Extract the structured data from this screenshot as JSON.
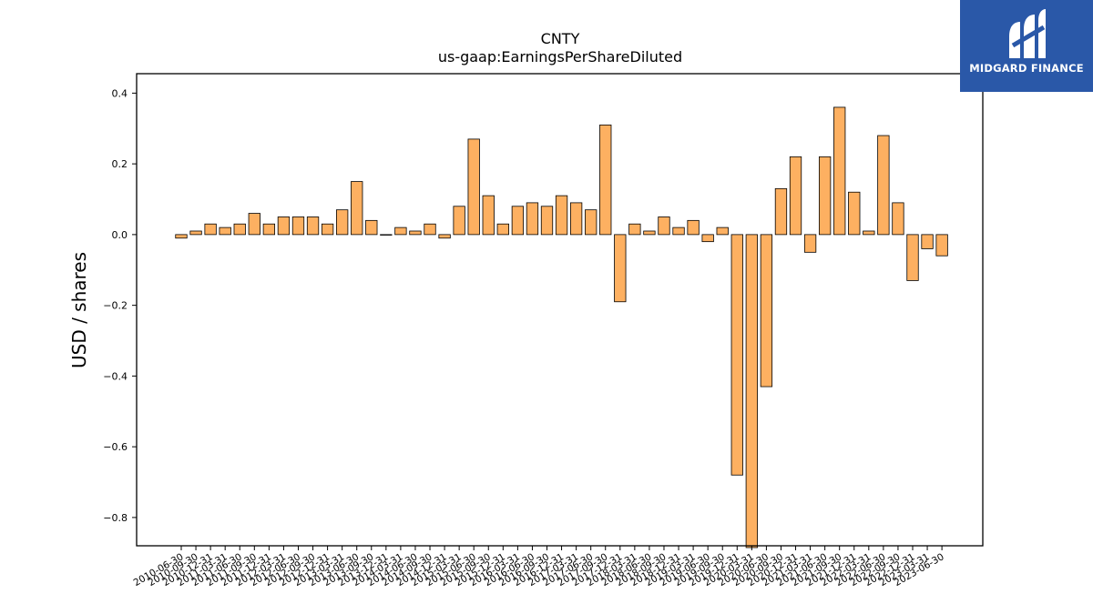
{
  "chart_data": {
    "type": "bar",
    "title": "CNTY",
    "subtitle": "us-gaap:EarningsPerShareDiluted",
    "ylabel": "USD / shares",
    "xlabel": "",
    "ylim": [
      -0.88,
      0.455
    ],
    "yticks": [
      0.4,
      0.2,
      0.0,
      -0.2,
      -0.4,
      -0.6,
      -0.8
    ],
    "ytick_labels": [
      "0.4",
      "0.2",
      "0.0",
      "−0.2",
      "−0.4",
      "−0.6",
      "−0.8"
    ],
    "bar_color": "#fdb061",
    "grid": false,
    "categories": [
      "2010-06-30",
      "2010-09-30",
      "2010-12-31",
      "2011-03-31",
      "2011-06-30",
      "2011-09-30",
      "2011-12-31",
      "2012-03-31",
      "2012-06-30",
      "2012-09-30",
      "2012-12-31",
      "2013-03-31",
      "2013-06-30",
      "2013-09-30",
      "2013-12-31",
      "2014-03-31",
      "2014-06-30",
      "2014-09-30",
      "2014-12-31",
      "2015-03-31",
      "2015-06-30",
      "2015-09-30",
      "2015-12-31",
      "2016-03-31",
      "2016-06-30",
      "2016-09-30",
      "2016-12-31",
      "2017-03-31",
      "2017-06-30",
      "2017-09-30",
      "2017-12-31",
      "2018-03-31",
      "2018-06-30",
      "2018-09-30",
      "2018-12-31",
      "2019-03-31",
      "2019-06-30",
      "2019-09-30",
      "2019-12-31",
      "2020-03-31",
      "2020-06-30",
      "2020-09-30",
      "2020-12-31",
      "2021-03-31",
      "2021-06-30",
      "2021-09-30",
      "2021-12-31",
      "2022-03-31",
      "2022-06-30",
      "2022-09-30",
      "2022-12-31",
      "2023-03-31",
      "2023-06-30"
    ],
    "values": [
      -0.01,
      0.01,
      0.03,
      0.02,
      0.03,
      0.06,
      0.03,
      0.05,
      0.05,
      0.05,
      0.03,
      0.07,
      0.15,
      0.04,
      0.0,
      0.02,
      0.01,
      0.03,
      -0.01,
      0.08,
      0.27,
      0.11,
      0.03,
      0.08,
      0.09,
      0.08,
      0.11,
      0.09,
      0.07,
      0.31,
      -0.19,
      0.03,
      0.01,
      0.05,
      0.02,
      0.04,
      -0.02,
      0.02,
      -0.68,
      -0.9,
      -0.43,
      0.13,
      0.22,
      -0.05,
      0.22,
      0.36,
      0.12,
      0.01,
      0.28,
      0.09,
      -0.13,
      -0.04,
      -0.06
    ]
  },
  "logo": {
    "text": "MIDGARD FINANCE",
    "background": "#2a58a8"
  }
}
